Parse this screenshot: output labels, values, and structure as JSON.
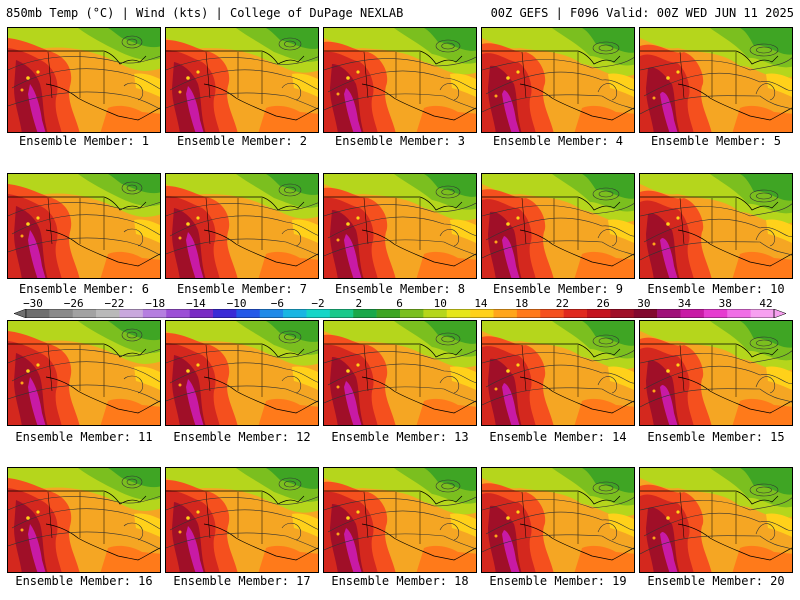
{
  "header": {
    "left": "850mb Temp (°C) | Wind (kts) | College of DuPage NEXLAB",
    "right": "00Z GEFS | F096 Valid: 00Z WED JUN 11 2025"
  },
  "members": [
    "Ensemble Member: 1",
    "Ensemble Member: 2",
    "Ensemble Member: 3",
    "Ensemble Member: 4",
    "Ensemble Member: 5",
    "Ensemble Member: 6",
    "Ensemble Member: 7",
    "Ensemble Member: 8",
    "Ensemble Member: 9",
    "Ensemble Member: 10",
    "Ensemble Member: 11",
    "Ensemble Member: 12",
    "Ensemble Member: 13",
    "Ensemble Member: 14",
    "Ensemble Member: 15",
    "Ensemble Member: 16",
    "Ensemble Member: 17",
    "Ensemble Member: 18",
    "Ensemble Member: 19",
    "Ensemble Member: 20"
  ],
  "colorbar": {
    "labels": [
      "−30",
      "−26",
      "−22",
      "−18",
      "−14",
      "−10",
      "−6",
      "−2",
      "2",
      "6",
      "10",
      "14",
      "18",
      "22",
      "26",
      "30",
      "34",
      "38",
      "42"
    ],
    "colors": [
      "#6f6f6f",
      "#8a8a8a",
      "#a2a2a2",
      "#b9b9b9",
      "#c9a8dd",
      "#b57ee0",
      "#9c4fd6",
      "#7a2bc4",
      "#3a2bd6",
      "#2459e8",
      "#1f8ae8",
      "#19b6e3",
      "#15d6c8",
      "#19c98a",
      "#1aa84a",
      "#3fa524",
      "#7bbf1f",
      "#b5d61c",
      "#e6e619",
      "#ffd11a",
      "#ffa51a",
      "#ff7a1a",
      "#f5501e",
      "#e02a1e",
      "#c4141e",
      "#a00f28",
      "#82082f",
      "#a0107a",
      "#c81aa5",
      "#e63cd0",
      "#f06ee6",
      "#f7a0f0"
    ]
  }
}
